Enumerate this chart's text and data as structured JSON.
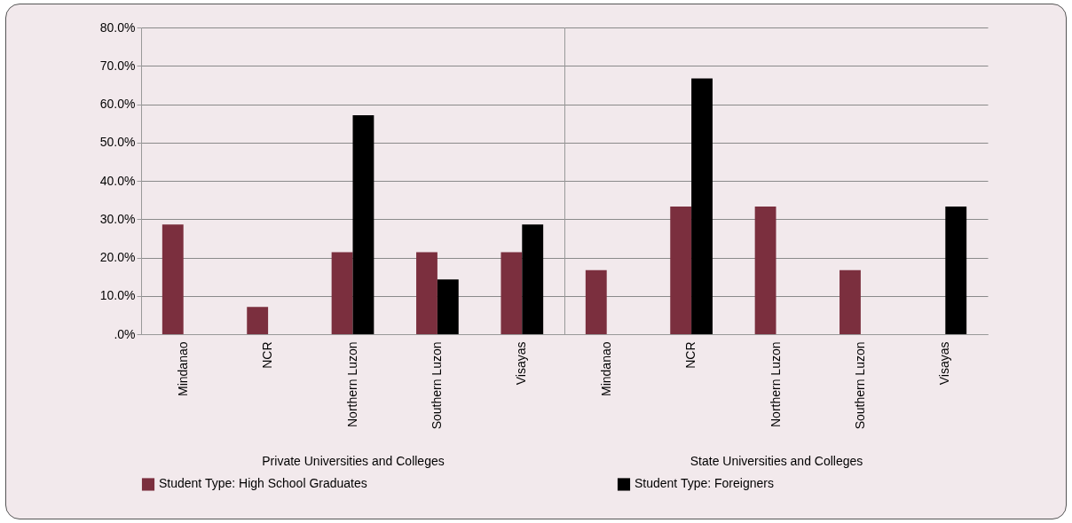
{
  "chart_data": [
    {
      "type": "bar",
      "xlabel": "Private Universities and Colleges",
      "categories": [
        "Mindanao",
        "NCR",
        "Northern Luzon",
        "Southern Luzon",
        "Visayas"
      ],
      "series": [
        {
          "name": "Student Type: High School Graduates",
          "color": "#7b2f3e",
          "values": [
            28.6,
            7.1,
            21.4,
            21.4,
            21.4
          ]
        },
        {
          "name": "Student Type: Foreigners",
          "color": "#000000",
          "values": [
            0,
            0,
            57.1,
            14.3,
            28.6
          ]
        }
      ],
      "ylim": [
        0,
        80
      ],
      "yticks": [
        {
          "value": 0,
          "label": ".0%"
        },
        {
          "value": 10,
          "label": "10.0%"
        },
        {
          "value": 20,
          "label": "20.0%"
        },
        {
          "value": 30,
          "label": "30.0%"
        },
        {
          "value": 40,
          "label": "40.0%"
        },
        {
          "value": 50,
          "label": "50.0%"
        },
        {
          "value": 60,
          "label": "60.0%"
        },
        {
          "value": 70,
          "label": "70.0%"
        },
        {
          "value": 80,
          "label": "80.0%"
        }
      ],
      "grid": "y",
      "legend": "bottom"
    },
    {
      "type": "bar",
      "xlabel": "State Universities and Colleges",
      "categories": [
        "Mindanao",
        "NCR",
        "Northern Luzon",
        "Southern Luzon",
        "Visayas"
      ],
      "series": [
        {
          "name": "Student Type: High School Graduates",
          "color": "#7b2f3e",
          "values": [
            16.7,
            33.3,
            33.3,
            16.7,
            0
          ]
        },
        {
          "name": "Student Type: Foreigners",
          "color": "#000000",
          "values": [
            0,
            66.7,
            0,
            0,
            33.3
          ]
        }
      ],
      "ylim": [
        0,
        80
      ],
      "yticks": [
        0,
        10,
        20,
        30,
        40,
        50,
        60,
        70,
        80
      ],
      "grid": "y",
      "legend": "bottom",
      "tick_labels": "x"
    }
  ]
}
